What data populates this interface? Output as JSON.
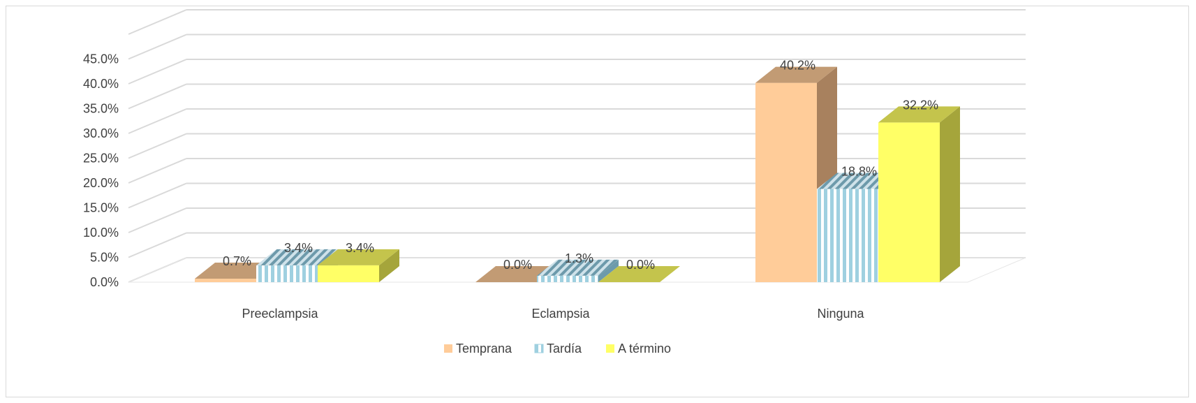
{
  "chart_data": {
    "type": "bar",
    "categories": [
      "Preeclampsia",
      "Eclampsia",
      "Ninguna"
    ],
    "series": [
      {
        "name": "Temprana",
        "values": [
          0.7,
          0.0,
          40.2
        ],
        "labels": [
          "0.7%",
          "0.0%",
          "40.2%"
        ],
        "pattern": "solid"
      },
      {
        "name": "Tardía",
        "values": [
          3.4,
          1.3,
          18.8
        ],
        "labels": [
          "3.4%",
          "1.3%",
          "18.8%"
        ],
        "pattern": "vertical-stripes"
      },
      {
        "name": "A término",
        "values": [
          3.4,
          0.0,
          32.2
        ],
        "labels": [
          "3.4%",
          "0.0%",
          "32.2%"
        ],
        "pattern": "solid"
      }
    ],
    "ylim": [
      0,
      50
    ],
    "y_ticks": [
      {
        "value": 0,
        "label": "0.0%"
      },
      {
        "value": 5,
        "label": "5.0%"
      },
      {
        "value": 10,
        "label": "10.0%"
      },
      {
        "value": 15,
        "label": "15.0%"
      },
      {
        "value": 20,
        "label": "20.0%"
      },
      {
        "value": 25,
        "label": "25.0%"
      },
      {
        "value": 30,
        "label": "30.0%"
      },
      {
        "value": 35,
        "label": "35.0%"
      },
      {
        "value": 40,
        "label": "40.0%"
      },
      {
        "value": 45,
        "label": "45.0%"
      }
    ],
    "grid": true,
    "perspective": "3d",
    "legend_position": "bottom",
    "colors": {
      "Temprana": {
        "front": "#ffcc99",
        "side": "#a8815e",
        "top": "#c29b74"
      },
      "Tardía": {
        "front": "#ffffff",
        "stripe": "#9fd0e0",
        "side": "#6d9aab",
        "top": "#8fb3c2"
      },
      "A término": {
        "front": "#ffff66",
        "side": "#a5a53b",
        "top": "#c4c44c"
      }
    }
  }
}
